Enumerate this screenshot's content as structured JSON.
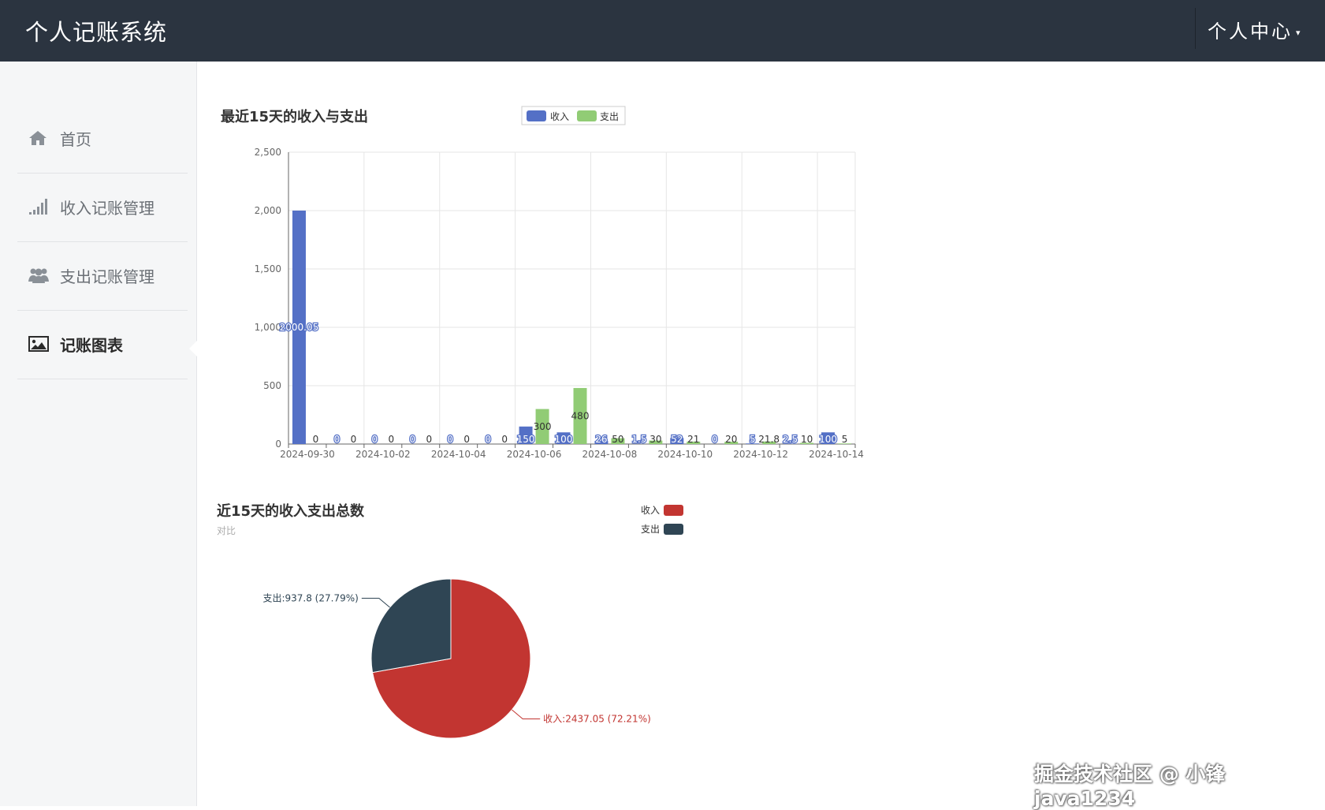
{
  "header": {
    "app_title": "个人记账系统",
    "user_menu_label": "个人中心"
  },
  "sidebar": {
    "items": [
      {
        "label": "首页",
        "icon": "home-icon"
      },
      {
        "label": "收入记账管理",
        "icon": "signal-bars-icon"
      },
      {
        "label": "支出记账管理",
        "icon": "users-icon"
      },
      {
        "label": "记账图表",
        "icon": "image-icon",
        "active": true
      }
    ]
  },
  "bar_chart": {
    "title": "最近15天的收入与支出"
  },
  "pie_chart": {
    "title": "近15天的收入支出总数",
    "subtitle": "对比"
  },
  "chart_data": [
    {
      "type": "bar",
      "title": "最近15天的收入与支出",
      "categories": [
        "2024-09-30",
        "2024-10-01",
        "2024-10-02",
        "2024-10-03",
        "2024-10-04",
        "2024-10-05",
        "2024-10-06",
        "2024-10-07",
        "2024-10-08",
        "2024-10-09",
        "2024-10-10",
        "2024-10-11",
        "2024-10-12",
        "2024-10-13",
        "2024-10-14"
      ],
      "tick_labels": [
        "2024-09-30",
        "2024-10-02",
        "2024-10-04",
        "2024-10-06",
        "2024-10-08",
        "2024-10-10",
        "2024-10-12",
        "2024-10-14"
      ],
      "series": [
        {
          "name": "收入",
          "color": "#5470c6",
          "values": [
            2000.05,
            0,
            0,
            0,
            0,
            0,
            150,
            100,
            26,
            1.5,
            52,
            0,
            5,
            2.5,
            100
          ]
        },
        {
          "name": "支出",
          "color": "#91cc75",
          "values": [
            0,
            0,
            0,
            0,
            0,
            0,
            300,
            480,
            50,
            30,
            21,
            20,
            21.8,
            10,
            5
          ]
        }
      ],
      "ylim": [
        0,
        2500
      ],
      "yticks": [
        0,
        500,
        1000,
        1500,
        2000,
        2500
      ],
      "ytick_labels": [
        "0",
        "500",
        "1,000",
        "1,500",
        "2,000",
        "2,500"
      ],
      "legend_position": "top",
      "grid": true
    },
    {
      "type": "pie",
      "title": "近15天的收入支出总数",
      "subtitle": "对比",
      "slices": [
        {
          "name": "收入",
          "value": 2437.05,
          "percent": 72.21,
          "color": "#c23531",
          "label": "收入:2437.05 (72.21%)"
        },
        {
          "name": "支出",
          "value": 937.8,
          "percent": 27.79,
          "color": "#2f4554",
          "label": "支出:937.8 (27.79%)"
        }
      ],
      "legend_position": "top-right"
    }
  ],
  "watermark": "掘金技术社区 @ 小锋java1234"
}
